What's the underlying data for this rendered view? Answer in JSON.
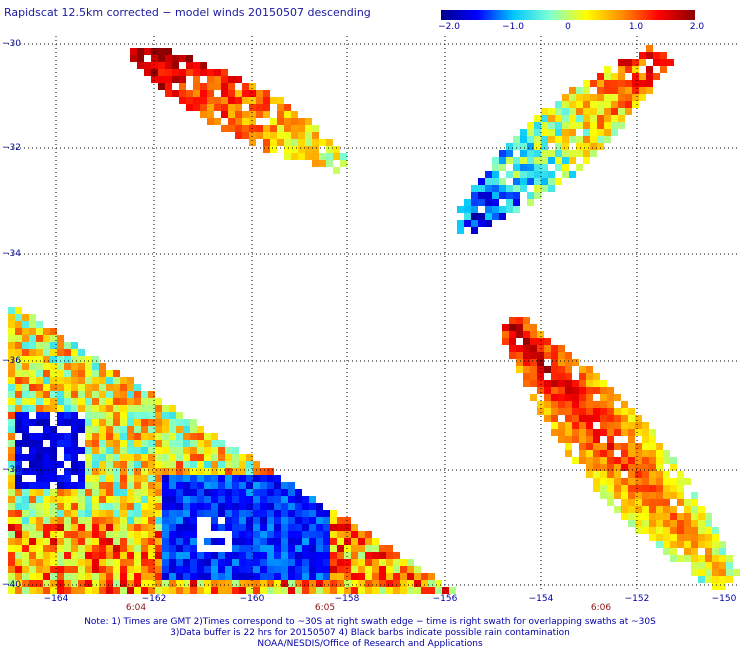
{
  "title": "Rapidscat 12.5km corrected − model winds 20150507 descending",
  "colorbar": {
    "labels": [
      "−2.0",
      "−1.0",
      "0",
      "1.0",
      "2.0"
    ],
    "stops": [
      "#00008b",
      "#0000ff",
      "#00c8ff",
      "#7fffd4",
      "#ffff00",
      "#ff8c00",
      "#ff0000",
      "#8b0000"
    ]
  },
  "lat_labels": [
    "−30",
    "−32",
    "−34",
    "−36",
    "−38",
    "−40"
  ],
  "lon_labels": [
    "−164",
    "−162",
    "−160",
    "−158",
    "−156",
    "−154",
    "−152",
    "−150"
  ],
  "time_labels": [
    "6:04",
    "6:05",
    "6:06"
  ],
  "notes": [
    "Note: 1) Times are GMT 2)Times correspond to ~30S at right swath edge − time is right swath for overlapping swaths at ~30S",
    "3)Data buffer is 22 hrs for 20150507 4) Black barbs indicate possible rain contamination",
    "NOAA/NESDIS/Office of Research and Applications"
  ],
  "map_extent": {
    "lon": [
      -165,
      -150
    ],
    "lat": [
      -40,
      -30
    ]
  }
}
